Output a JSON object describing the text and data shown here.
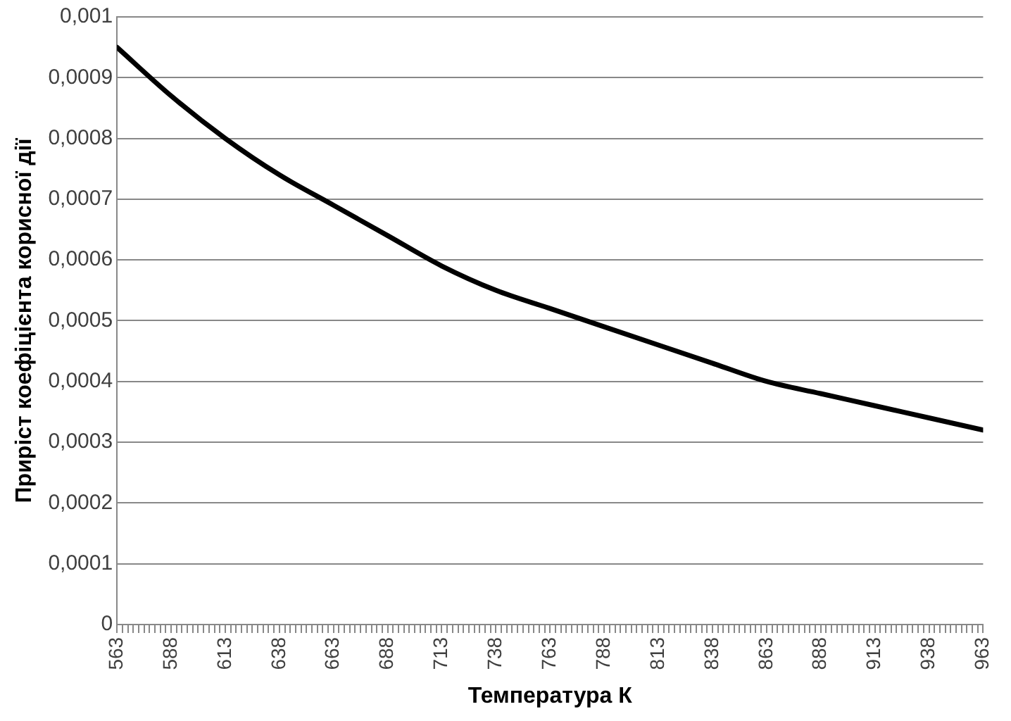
{
  "chart_data": {
    "type": "line",
    "xlabel": "Температура К",
    "ylabel": "Приріст коефіцієнта корисної дії",
    "x": [
      563,
      588,
      613,
      638,
      663,
      688,
      713,
      738,
      763,
      788,
      813,
      838,
      863,
      888,
      913,
      938,
      963
    ],
    "series": [
      {
        "color": "#000000",
        "values": [
          0.00095,
          0.00087,
          0.0008,
          0.00074,
          0.00069,
          0.00064,
          0.00059,
          0.00055,
          0.00052,
          0.00049,
          0.00046,
          0.00043,
          0.0004,
          0.00038,
          0.00036,
          0.00034,
          0.00032
        ]
      }
    ],
    "xlim": [
      563,
      963
    ],
    "xticks": [
      563,
      {
        "value": 565.5,
        "label": null
      },
      {
        "value": 568,
        "label": null
      },
      {
        "value": 570.5,
        "label": null
      },
      {
        "value": 573,
        "label": null
      },
      {
        "value": 575.5,
        "label": null
      },
      {
        "value": 578,
        "label": null
      },
      {
        "value": 580.5,
        "label": null
      },
      {
        "value": 583,
        "label": null
      },
      {
        "value": 585.5,
        "label": null
      },
      588,
      {
        "value": 590.5,
        "label": null
      },
      {
        "value": 593,
        "label": null
      },
      {
        "value": 595.5,
        "label": null
      },
      {
        "value": 598,
        "label": null
      },
      {
        "value": 600.5,
        "label": null
      },
      {
        "value": 603,
        "label": null
      },
      {
        "value": 605.5,
        "label": null
      },
      {
        "value": 608,
        "label": null
      },
      {
        "value": 610.5,
        "label": null
      },
      613,
      {
        "value": 615.5,
        "label": null
      },
      {
        "value": 618,
        "label": null
      },
      {
        "value": 620.5,
        "label": null
      },
      {
        "value": 623,
        "label": null
      },
      {
        "value": 625.5,
        "label": null
      },
      {
        "value": 628,
        "label": null
      },
      {
        "value": 630.5,
        "label": null
      },
      {
        "value": 633,
        "label": null
      },
      {
        "value": 635.5,
        "label": null
      },
      638,
      {
        "value": 640.5,
        "label": null
      },
      {
        "value": 643,
        "label": null
      },
      {
        "value": 645.5,
        "label": null
      },
      {
        "value": 648,
        "label": null
      },
      {
        "value": 650.5,
        "label": null
      },
      {
        "value": 653,
        "label": null
      },
      {
        "value": 655.5,
        "label": null
      },
      {
        "value": 658,
        "label": null
      },
      {
        "value": 660.5,
        "label": null
      },
      663,
      {
        "value": 665.5,
        "label": null
      },
      {
        "value": 668,
        "label": null
      },
      {
        "value": 670.5,
        "label": null
      },
      {
        "value": 673,
        "label": null
      },
      {
        "value": 675.5,
        "label": null
      },
      {
        "value": 678,
        "label": null
      },
      {
        "value": 680.5,
        "label": null
      },
      {
        "value": 683,
        "label": null
      },
      {
        "value": 685.5,
        "label": null
      },
      688,
      {
        "value": 690.5,
        "label": null
      },
      {
        "value": 693,
        "label": null
      },
      {
        "value": 695.5,
        "label": null
      },
      {
        "value": 698,
        "label": null
      },
      {
        "value": 700.5,
        "label": null
      },
      {
        "value": 703,
        "label": null
      },
      {
        "value": 705.5,
        "label": null
      },
      {
        "value": 708,
        "label": null
      },
      {
        "value": 710.5,
        "label": null
      },
      713,
      {
        "value": 715.5,
        "label": null
      },
      {
        "value": 718,
        "label": null
      },
      {
        "value": 720.5,
        "label": null
      },
      {
        "value": 723,
        "label": null
      },
      {
        "value": 725.5,
        "label": null
      },
      {
        "value": 728,
        "label": null
      },
      {
        "value": 730.5,
        "label": null
      },
      {
        "value": 733,
        "label": null
      },
      {
        "value": 735.5,
        "label": null
      },
      738,
      {
        "value": 740.5,
        "label": null
      },
      {
        "value": 743,
        "label": null
      },
      {
        "value": 745.5,
        "label": null
      },
      {
        "value": 748,
        "label": null
      },
      {
        "value": 750.5,
        "label": null
      },
      {
        "value": 753,
        "label": null
      },
      {
        "value": 755.5,
        "label": null
      },
      {
        "value": 758,
        "label": null
      },
      {
        "value": 760.5,
        "label": null
      },
      763,
      {
        "value": 765.5,
        "label": null
      },
      {
        "value": 768,
        "label": null
      },
      {
        "value": 770.5,
        "label": null
      },
      {
        "value": 773,
        "label": null
      },
      {
        "value": 775.5,
        "label": null
      },
      {
        "value": 778,
        "label": null
      },
      {
        "value": 780.5,
        "label": null
      },
      {
        "value": 783,
        "label": null
      },
      {
        "value": 785.5,
        "label": null
      },
      788,
      {
        "value": 790.5,
        "label": null
      },
      {
        "value": 793,
        "label": null
      },
      {
        "value": 795.5,
        "label": null
      },
      {
        "value": 798,
        "label": null
      },
      {
        "value": 800.5,
        "label": null
      },
      {
        "value": 803,
        "label": null
      },
      {
        "value": 805.5,
        "label": null
      },
      {
        "value": 808,
        "label": null
      },
      {
        "value": 810.5,
        "label": null
      },
      813,
      {
        "value": 815.5,
        "label": null
      },
      {
        "value": 818,
        "label": null
      },
      {
        "value": 820.5,
        "label": null
      },
      {
        "value": 823,
        "label": null
      },
      {
        "value": 825.5,
        "label": null
      },
      {
        "value": 828,
        "label": null
      },
      {
        "value": 830.5,
        "label": null
      },
      {
        "value": 833,
        "label": null
      },
      {
        "value": 835.5,
        "label": null
      },
      838,
      {
        "value": 840.5,
        "label": null
      },
      {
        "value": 843,
        "label": null
      },
      {
        "value": 845.5,
        "label": null
      },
      {
        "value": 848,
        "label": null
      },
      {
        "value": 850.5,
        "label": null
      },
      {
        "value": 853,
        "label": null
      },
      {
        "value": 855.5,
        "label": null
      },
      {
        "value": 858,
        "label": null
      },
      {
        "value": 860.5,
        "label": null
      },
      863,
      {
        "value": 865.5,
        "label": null
      },
      {
        "value": 868,
        "label": null
      },
      {
        "value": 870.5,
        "label": null
      },
      {
        "value": 873,
        "label": null
      },
      {
        "value": 875.5,
        "label": null
      },
      {
        "value": 878,
        "label": null
      },
      {
        "value": 880.5,
        "label": null
      },
      {
        "value": 883,
        "label": null
      },
      {
        "value": 885.5,
        "label": null
      },
      888,
      {
        "value": 890.5,
        "label": null
      },
      {
        "value": 893,
        "label": null
      },
      {
        "value": 895.5,
        "label": null
      },
      {
        "value": 898,
        "label": null
      },
      {
        "value": 900.5,
        "label": null
      },
      {
        "value": 903,
        "label": null
      },
      {
        "value": 905.5,
        "label": null
      },
      {
        "value": 908,
        "label": null
      },
      {
        "value": 910.5,
        "label": null
      },
      913,
      {
        "value": 915.5,
        "label": null
      },
      {
        "value": 918,
        "label": null
      },
      {
        "value": 920.5,
        "label": null
      },
      {
        "value": 923,
        "label": null
      },
      {
        "value": 925.5,
        "label": null
      },
      {
        "value": 928,
        "label": null
      },
      {
        "value": 930.5,
        "label": null
      },
      {
        "value": 933,
        "label": null
      },
      {
        "value": 935.5,
        "label": null
      },
      938,
      {
        "value": 940.5,
        "label": null
      },
      {
        "value": 943,
        "label": null
      },
      {
        "value": 945.5,
        "label": null
      },
      {
        "value": 948,
        "label": null
      },
      {
        "value": 950.5,
        "label": null
      },
      {
        "value": 953,
        "label": null
      },
      {
        "value": 955.5,
        "label": null
      },
      {
        "value": 958,
        "label": null
      },
      {
        "value": 960.5,
        "label": null
      },
      963
    ],
    "ylim": [
      0,
      0.001
    ],
    "yticks": [
      0,
      {
        "value": 0.0001,
        "label": "0,0001"
      },
      {
        "value": 0.0002,
        "label": "0,0002"
      },
      {
        "value": 0.0003,
        "label": "0,0003"
      },
      {
        "value": 0.0004,
        "label": "0,0004"
      },
      {
        "value": 0.0005,
        "label": "0,0005"
      },
      {
        "value": 0.0006,
        "label": "0,0006"
      },
      {
        "value": 0.0007,
        "label": "0,0007"
      },
      {
        "value": 0.0008,
        "label": "0,0008"
      },
      {
        "value": 0.0009,
        "label": "0,0009"
      },
      {
        "value": 0.001,
        "label": "0,001"
      }
    ],
    "grid": "y",
    "legend": false,
    "marker": "none",
    "line_style": "solid"
  }
}
